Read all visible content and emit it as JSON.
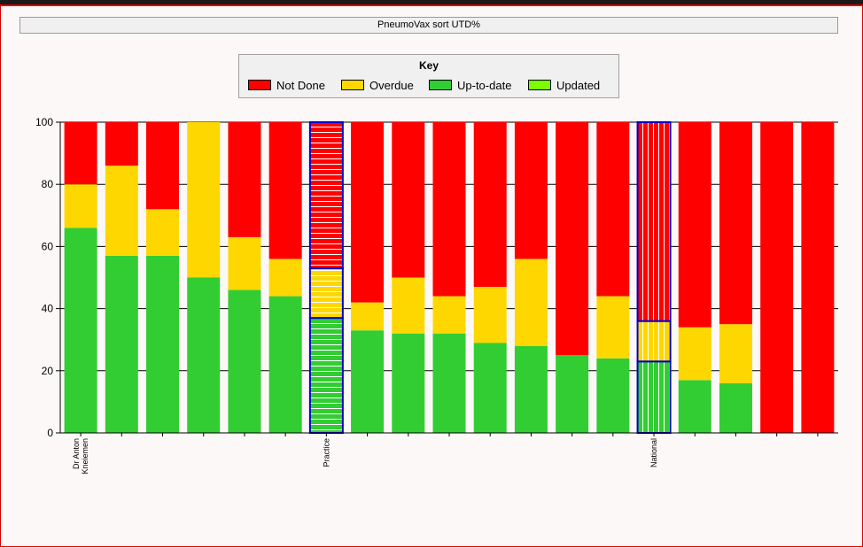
{
  "title": "PneumoVax sort UTD%",
  "key": {
    "title": "Key",
    "items": [
      {
        "label": "Not Done",
        "color": "#ff0000"
      },
      {
        "label": "Overdue",
        "color": "#ffd700"
      },
      {
        "label": "Up-to-date",
        "color": "#32cd32"
      },
      {
        "label": "Updated",
        "color": "#7cfc00"
      }
    ]
  },
  "chart_data": {
    "type": "bar",
    "stacked": true,
    "ylim": [
      0,
      100
    ],
    "yticks": [
      0,
      20,
      40,
      60,
      80,
      100
    ],
    "grid": true,
    "categories": [
      "Dr Anton Kneiemen",
      "",
      "",
      "",
      "",
      "",
      "Practice",
      "",
      "",
      "",
      "",
      "",
      "",
      "",
      "National",
      "",
      "",
      "",
      ""
    ],
    "highlighted": [
      "Practice",
      "National"
    ],
    "series": [
      {
        "name": "Up-to-date",
        "color": "#32cd32",
        "values": [
          66,
          57,
          57,
          50,
          46,
          44,
          37,
          33,
          32,
          32,
          29,
          28,
          25,
          24,
          23,
          17,
          16,
          0,
          0
        ]
      },
      {
        "name": "Overdue",
        "color": "#ffd700",
        "values": [
          14,
          29,
          15,
          50,
          17,
          12,
          16,
          9,
          18,
          12,
          18,
          28,
          0,
          20,
          13,
          17,
          19,
          0,
          0
        ]
      },
      {
        "name": "Not Done",
        "color": "#ff0000",
        "values": [
          20,
          14,
          28,
          0,
          37,
          44,
          47,
          58,
          50,
          56,
          53,
          44,
          75,
          56,
          64,
          66,
          65,
          100,
          100
        ]
      }
    ]
  }
}
